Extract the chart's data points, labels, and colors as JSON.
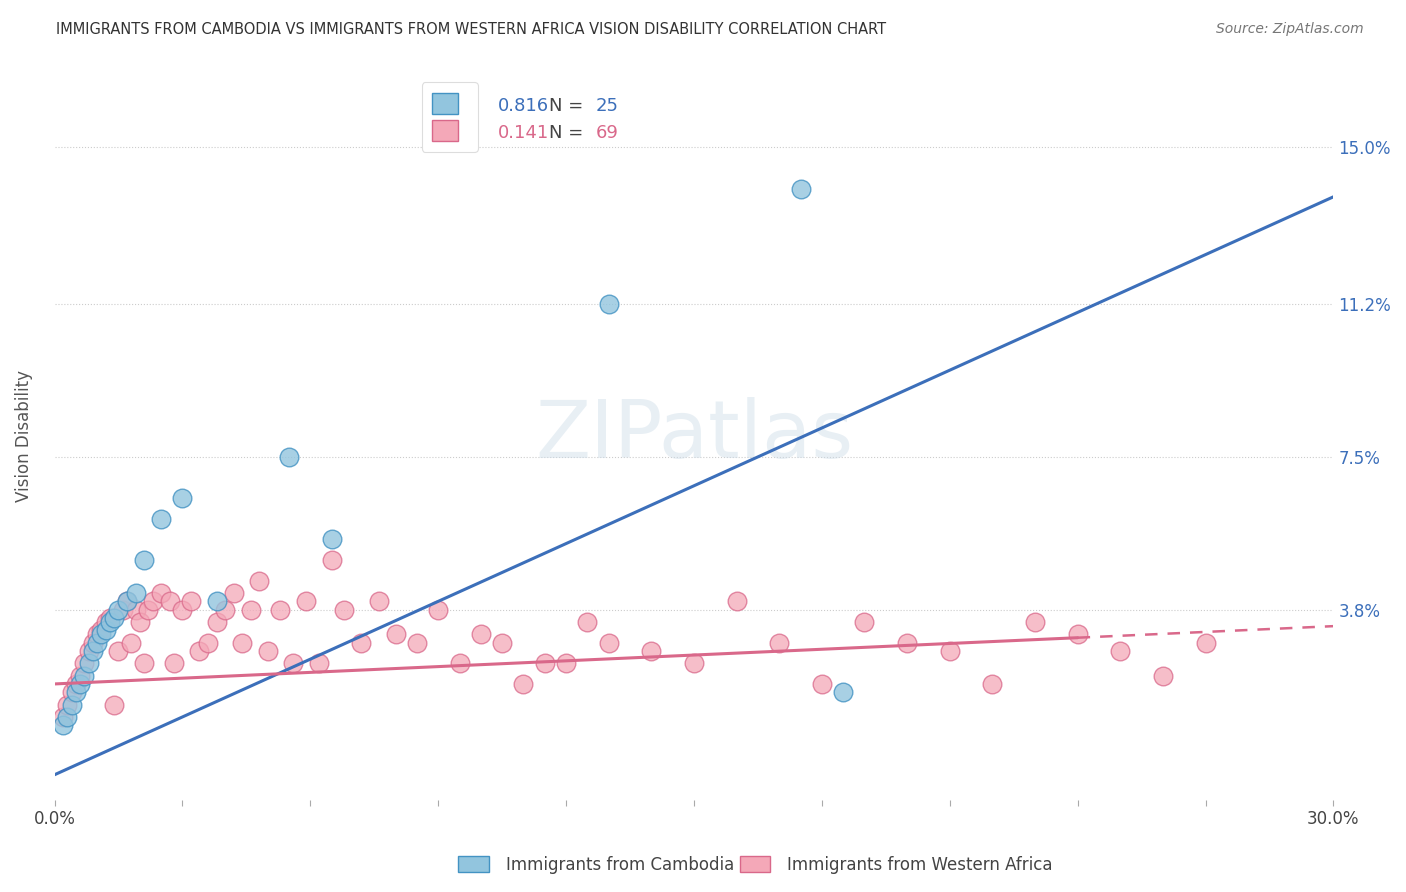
{
  "title": "IMMIGRANTS FROM CAMBODIA VS IMMIGRANTS FROM WESTERN AFRICA VISION DISABILITY CORRELATION CHART",
  "source": "Source: ZipAtlas.com",
  "ylabel": "Vision Disability",
  "ytick_values": [
    0.0,
    0.038,
    0.075,
    0.112,
    0.15
  ],
  "ytick_labels": [
    "",
    "3.8%",
    "7.5%",
    "11.2%",
    "15.0%"
  ],
  "xlim": [
    0.0,
    0.3
  ],
  "ylim": [
    -0.008,
    0.168
  ],
  "cambodia_color": "#92c5de",
  "cambodia_color_edge": "#4393c3",
  "cambodia_line_color": "#3c6fba",
  "western_africa_color": "#f4a8b8",
  "western_africa_color_edge": "#d9688a",
  "western_africa_line_color": "#d9688a",
  "watermark": "ZIPatlas",
  "legend_R_cambodia": "0.816",
  "legend_N_cambodia": "25",
  "legend_R_western_africa": "0.141",
  "legend_N_western_africa": "69",
  "legend_color_value": "#4393c3",
  "legend_color_text": "#555555",
  "cam_line_start_x": 0.0,
  "cam_line_start_y": -0.002,
  "cam_line_end_x": 0.3,
  "cam_line_end_y": 0.138,
  "waf_line_start_x": 0.0,
  "waf_line_start_y": 0.02,
  "waf_line_solid_end_x": 0.24,
  "waf_line_end_x": 0.3,
  "waf_line_end_y": 0.034,
  "cambodia_x": [
    0.002,
    0.003,
    0.004,
    0.005,
    0.006,
    0.007,
    0.008,
    0.009,
    0.01,
    0.011,
    0.012,
    0.013,
    0.014,
    0.015,
    0.017,
    0.019,
    0.021,
    0.025,
    0.03,
    0.038,
    0.055,
    0.065,
    0.13,
    0.175,
    0.185
  ],
  "cambodia_y": [
    0.01,
    0.012,
    0.015,
    0.018,
    0.02,
    0.022,
    0.025,
    0.028,
    0.03,
    0.032,
    0.033,
    0.035,
    0.036,
    0.038,
    0.04,
    0.042,
    0.05,
    0.06,
    0.065,
    0.04,
    0.075,
    0.055,
    0.112,
    0.14,
    0.018
  ],
  "western_africa_x": [
    0.002,
    0.003,
    0.004,
    0.005,
    0.006,
    0.007,
    0.008,
    0.009,
    0.01,
    0.011,
    0.012,
    0.013,
    0.014,
    0.015,
    0.016,
    0.017,
    0.018,
    0.019,
    0.02,
    0.021,
    0.022,
    0.023,
    0.025,
    0.027,
    0.028,
    0.03,
    0.032,
    0.034,
    0.036,
    0.038,
    0.04,
    0.042,
    0.044,
    0.046,
    0.048,
    0.05,
    0.053,
    0.056,
    0.059,
    0.062,
    0.065,
    0.068,
    0.072,
    0.076,
    0.08,
    0.085,
    0.09,
    0.095,
    0.1,
    0.105,
    0.11,
    0.115,
    0.12,
    0.125,
    0.13,
    0.14,
    0.15,
    0.16,
    0.17,
    0.18,
    0.19,
    0.2,
    0.21,
    0.22,
    0.23,
    0.24,
    0.25,
    0.26,
    0.27
  ],
  "western_africa_y": [
    0.012,
    0.015,
    0.018,
    0.02,
    0.022,
    0.025,
    0.028,
    0.03,
    0.032,
    0.033,
    0.035,
    0.036,
    0.015,
    0.028,
    0.038,
    0.04,
    0.03,
    0.038,
    0.035,
    0.025,
    0.038,
    0.04,
    0.042,
    0.04,
    0.025,
    0.038,
    0.04,
    0.028,
    0.03,
    0.035,
    0.038,
    0.042,
    0.03,
    0.038,
    0.045,
    0.028,
    0.038,
    0.025,
    0.04,
    0.025,
    0.05,
    0.038,
    0.03,
    0.04,
    0.032,
    0.03,
    0.038,
    0.025,
    0.032,
    0.03,
    0.02,
    0.025,
    0.025,
    0.035,
    0.03,
    0.028,
    0.025,
    0.04,
    0.03,
    0.02,
    0.035,
    0.03,
    0.028,
    0.02,
    0.035,
    0.032,
    0.028,
    0.022,
    0.03
  ]
}
